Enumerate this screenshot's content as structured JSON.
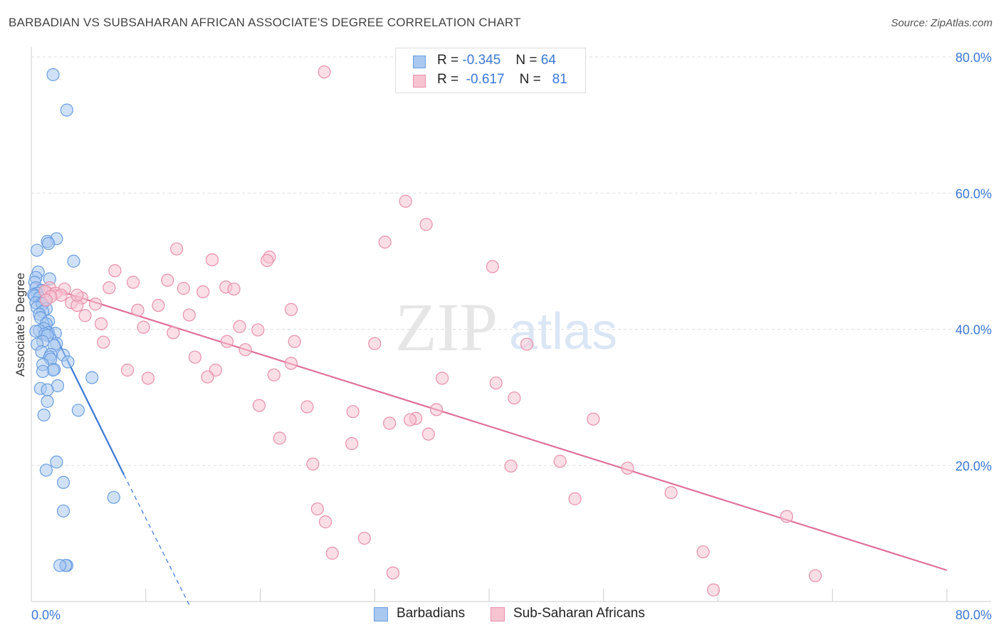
{
  "header": {
    "title": "BARBADIAN VS SUBSAHARAN AFRICAN ASSOCIATE'S DEGREE CORRELATION CHART",
    "source": "Source: ZipAtlas.com"
  },
  "legend_top": {
    "rows": [
      {
        "r_label": "R =",
        "r_value": "-0.345",
        "n_label": "N =",
        "n_value": "64"
      },
      {
        "r_label": "R =",
        "r_value": "-0.617",
        "n_label": "N =",
        "n_value": "81"
      }
    ]
  },
  "legend_bottom": {
    "items": [
      "Barbadians",
      "Sub-Saharan Africans"
    ]
  },
  "watermark": {
    "zip": "ZIP",
    "atlas": "atlas"
  },
  "colors": {
    "blue_fill": "#a9c8f0",
    "blue_stroke": "#6a9ee0",
    "blue_line": "#3a78d6",
    "pink_fill": "#f7c3d1",
    "pink_stroke": "#e890aa",
    "pink_line": "#e0709a",
    "grid": "#dddddd",
    "axis_text": "#3a78d6"
  },
  "chart_data": {
    "type": "scatter",
    "title": "BARBADIAN VS SUBSAHARAN AFRICAN ASSOCIATE'S DEGREE CORRELATION CHART",
    "xlabel": "",
    "ylabel": "Associate's Degree",
    "xlim": [
      0,
      80
    ],
    "ylim": [
      0,
      80
    ],
    "x_tick_labels": [
      "0.0%",
      "80.0%"
    ],
    "y_tick_labels": [
      "20.0%",
      "40.0%",
      "60.0%",
      "80.0%"
    ],
    "y_ticks": [
      20,
      40,
      60,
      80
    ],
    "grid": true,
    "legend_position": "top-center",
    "series": [
      {
        "name": "Barbadians",
        "color": "#6a9ee0",
        "r": -0.345,
        "n": 64,
        "points": [
          [
            1.9,
            77.4
          ],
          [
            3.1,
            72.2
          ],
          [
            2.2,
            53.3
          ],
          [
            1.4,
            52.9
          ],
          [
            1.5,
            52.6
          ],
          [
            0.5,
            51.6
          ],
          [
            3.7,
            50.0
          ],
          [
            0.6,
            48.4
          ],
          [
            0.4,
            47.6
          ],
          [
            1.6,
            47.4
          ],
          [
            0.3,
            46.9
          ],
          [
            0.4,
            46.1
          ],
          [
            0.9,
            45.7
          ],
          [
            0.5,
            45.3
          ],
          [
            0.2,
            45.1
          ],
          [
            0.3,
            44.9
          ],
          [
            0.7,
            44.6
          ],
          [
            1.2,
            44.2
          ],
          [
            0.4,
            43.9
          ],
          [
            0.9,
            43.8
          ],
          [
            1.0,
            43.7
          ],
          [
            0.5,
            43.2
          ],
          [
            1.3,
            43.0
          ],
          [
            1.0,
            42.6
          ],
          [
            0.7,
            42.2
          ],
          [
            0.8,
            41.7
          ],
          [
            1.5,
            41.2
          ],
          [
            1.3,
            40.8
          ],
          [
            1.1,
            40.1
          ],
          [
            0.7,
            39.8
          ],
          [
            0.4,
            39.7
          ],
          [
            1.5,
            39.5
          ],
          [
            2.1,
            39.4
          ],
          [
            1.2,
            39.3
          ],
          [
            1.4,
            39.1
          ],
          [
            1.0,
            38.2
          ],
          [
            2.2,
            37.9
          ],
          [
            0.5,
            37.8
          ],
          [
            2.0,
            37.6
          ],
          [
            0.9,
            36.7
          ],
          [
            1.7,
            36.3
          ],
          [
            2.8,
            36.2
          ],
          [
            1.6,
            35.9
          ],
          [
            1.7,
            35.6
          ],
          [
            3.2,
            35.2
          ],
          [
            1.0,
            34.8
          ],
          [
            2.0,
            34.1
          ],
          [
            1.9,
            34.0
          ],
          [
            1.0,
            33.8
          ],
          [
            5.3,
            32.9
          ],
          [
            2.3,
            31.7
          ],
          [
            0.8,
            31.3
          ],
          [
            1.4,
            31.1
          ],
          [
            1.4,
            29.4
          ],
          [
            4.1,
            28.1
          ],
          [
            1.1,
            27.4
          ],
          [
            2.2,
            20.5
          ],
          [
            1.3,
            19.3
          ],
          [
            2.8,
            17.5
          ],
          [
            7.2,
            15.3
          ],
          [
            2.8,
            13.3
          ],
          [
            3.1,
            5.3
          ],
          [
            3.0,
            5.3
          ],
          [
            2.5,
            5.3
          ]
        ],
        "trendline": {
          "x": [
            0.2,
            8.1
          ],
          "y": [
            45.5,
            18.6
          ],
          "extension": {
            "x": [
              8.1,
              13.8
            ],
            "y": [
              18.6,
              -0.5
            ]
          }
        }
      },
      {
        "name": "Sub-Saharan Africans",
        "color": "#e890aa",
        "r": -0.617,
        "n": 81,
        "points": [
          [
            25.6,
            77.8
          ],
          [
            32.7,
            58.8
          ],
          [
            34.5,
            55.4
          ],
          [
            30.9,
            52.8
          ],
          [
            12.7,
            51.8
          ],
          [
            20.8,
            50.6
          ],
          [
            20.6,
            50.1
          ],
          [
            15.8,
            50.2
          ],
          [
            40.3,
            49.2
          ],
          [
            7.3,
            48.6
          ],
          [
            8.9,
            46.9
          ],
          [
            11.9,
            47.2
          ],
          [
            6.8,
            46.1
          ],
          [
            13.3,
            46.0
          ],
          [
            17.0,
            46.2
          ],
          [
            17.7,
            45.9
          ],
          [
            15.0,
            45.5
          ],
          [
            1.6,
            46.1
          ],
          [
            2.9,
            45.9
          ],
          [
            1.2,
            45.6
          ],
          [
            2.1,
            45.3
          ],
          [
            2.6,
            45.0
          ],
          [
            1.7,
            44.8
          ],
          [
            1.3,
            44.3
          ],
          [
            4.4,
            44.6
          ],
          [
            3.5,
            43.9
          ],
          [
            4.0,
            43.5
          ],
          [
            5.6,
            43.7
          ],
          [
            11.1,
            43.5
          ],
          [
            9.3,
            42.8
          ],
          [
            22.7,
            42.9
          ],
          [
            13.8,
            42.1
          ],
          [
            4.7,
            42.0
          ],
          [
            6.1,
            40.8
          ],
          [
            9.8,
            40.3
          ],
          [
            18.2,
            40.4
          ],
          [
            12.4,
            39.5
          ],
          [
            19.8,
            39.9
          ],
          [
            17.1,
            38.2
          ],
          [
            23.0,
            38.2
          ],
          [
            30.0,
            37.9
          ],
          [
            43.3,
            37.8
          ],
          [
            6.3,
            38.1
          ],
          [
            18.7,
            37.0
          ],
          [
            14.3,
            35.9
          ],
          [
            22.7,
            35.0
          ],
          [
            8.4,
            34.0
          ],
          [
            16.1,
            34.0
          ],
          [
            15.4,
            33.0
          ],
          [
            21.2,
            33.3
          ],
          [
            10.2,
            32.8
          ],
          [
            35.9,
            32.8
          ],
          [
            40.6,
            32.1
          ],
          [
            42.2,
            29.9
          ],
          [
            19.9,
            28.8
          ],
          [
            24.1,
            28.6
          ],
          [
            35.4,
            28.2
          ],
          [
            28.1,
            27.9
          ],
          [
            33.6,
            26.9
          ],
          [
            33.1,
            26.7
          ],
          [
            49.1,
            26.8
          ],
          [
            31.3,
            26.2
          ],
          [
            34.7,
            24.6
          ],
          [
            21.7,
            24.0
          ],
          [
            28.0,
            23.2
          ],
          [
            24.6,
            20.2
          ],
          [
            46.2,
            20.6
          ],
          [
            41.9,
            19.9
          ],
          [
            52.1,
            19.6
          ],
          [
            55.9,
            16.0
          ],
          [
            47.5,
            15.1
          ],
          [
            25.0,
            13.6
          ],
          [
            25.7,
            11.7
          ],
          [
            66.0,
            12.5
          ],
          [
            29.1,
            9.3
          ],
          [
            26.3,
            7.1
          ],
          [
            58.7,
            7.3
          ],
          [
            31.6,
            4.2
          ],
          [
            59.6,
            1.7
          ],
          [
            68.5,
            3.8
          ],
          [
            4.0,
            45.0
          ]
        ],
        "trendline": {
          "x": [
            0.2,
            80.0
          ],
          "y": [
            46.8,
            4.6
          ]
        }
      }
    ]
  }
}
